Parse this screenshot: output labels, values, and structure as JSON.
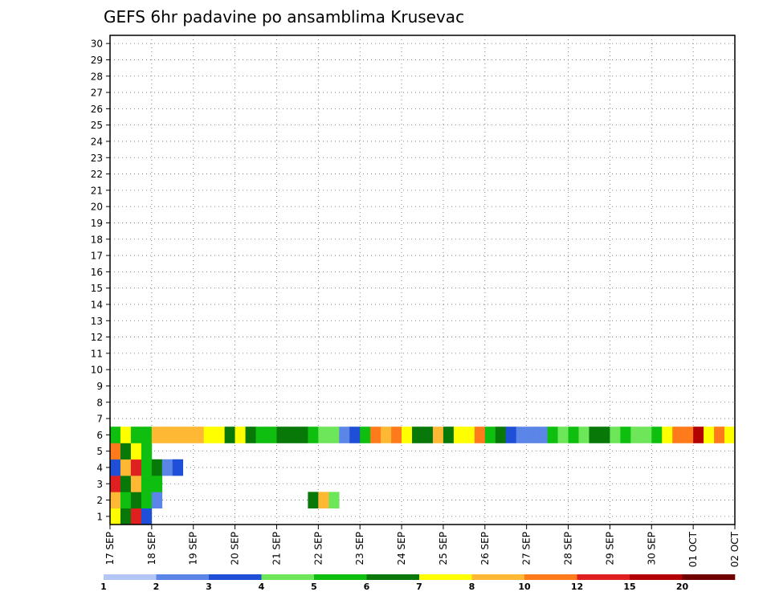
{
  "chart_data": {
    "type": "heatmap",
    "title": "GEFS 6hr padavine po ansamblima Krusevac",
    "y_categories": [
      "1",
      "2",
      "3",
      "4",
      "5",
      "6",
      "7",
      "8",
      "9",
      "10",
      "11",
      "12",
      "13",
      "14",
      "15",
      "16",
      "17",
      "18",
      "19",
      "20",
      "21",
      "22",
      "23",
      "24",
      "25",
      "26",
      "27",
      "28",
      "29",
      "30"
    ],
    "x_tick_labels": [
      "17 SEP",
      "18 SEP",
      "19 SEP",
      "20 SEP",
      "21 SEP",
      "22 SEP",
      "23 SEP",
      "24 SEP",
      "25 SEP",
      "26 SEP",
      "27 SEP",
      "28 SEP",
      "29 SEP",
      "30 SEP",
      "01 OCT",
      "02 OCT"
    ],
    "x_step_count": 60,
    "legend_labels": [
      "1",
      "2",
      "3",
      "4",
      "5",
      "6",
      "7",
      "8",
      "10",
      "12",
      "15",
      "20"
    ],
    "legend_colors": [
      "#b3c6f5",
      "#5b85e6",
      "#1f4fd6",
      "#6ee65a",
      "#0fbf0f",
      "#087808",
      "#ffff00",
      "#ffb833",
      "#ff7a1a",
      "#e02020",
      "#b30000",
      "#700000"
    ],
    "cells": [
      [
        0,
        0,
        6
      ],
      [
        1,
        0,
        5
      ],
      [
        2,
        0,
        9
      ],
      [
        3,
        0,
        2
      ],
      [
        0,
        1,
        7
      ],
      [
        1,
        1,
        4
      ],
      [
        2,
        1,
        5
      ],
      [
        3,
        1,
        4
      ],
      [
        4,
        1,
        1
      ],
      [
        19,
        1,
        5
      ],
      [
        20,
        1,
        7
      ],
      [
        21,
        1,
        3
      ],
      [
        0,
        2,
        9
      ],
      [
        1,
        2,
        5
      ],
      [
        2,
        2,
        7
      ],
      [
        3,
        2,
        4
      ],
      [
        4,
        2,
        4
      ],
      [
        0,
        3,
        2
      ],
      [
        1,
        3,
        7
      ],
      [
        2,
        3,
        9
      ],
      [
        3,
        3,
        4
      ],
      [
        4,
        3,
        5
      ],
      [
        5,
        3,
        1
      ],
      [
        6,
        3,
        2
      ],
      [
        0,
        4,
        8
      ],
      [
        1,
        4,
        5
      ],
      [
        2,
        4,
        6
      ],
      [
        3,
        4,
        4
      ],
      [
        0,
        5,
        4
      ],
      [
        1,
        5,
        6
      ],
      [
        2,
        5,
        4
      ],
      [
        3,
        5,
        4
      ],
      [
        4,
        5,
        7
      ],
      [
        5,
        5,
        7
      ],
      [
        6,
        5,
        7
      ],
      [
        7,
        5,
        7
      ],
      [
        8,
        5,
        7
      ],
      [
        9,
        5,
        6
      ],
      [
        10,
        5,
        6
      ],
      [
        11,
        5,
        5
      ],
      [
        12,
        5,
        6
      ],
      [
        13,
        5,
        5
      ],
      [
        14,
        5,
        4
      ],
      [
        15,
        5,
        4
      ],
      [
        16,
        5,
        5
      ],
      [
        17,
        5,
        5
      ],
      [
        18,
        5,
        5
      ],
      [
        19,
        5,
        4
      ],
      [
        20,
        5,
        3
      ],
      [
        21,
        5,
        3
      ],
      [
        22,
        5,
        1
      ],
      [
        23,
        5,
        2
      ],
      [
        24,
        5,
        4
      ],
      [
        25,
        5,
        8
      ],
      [
        26,
        5,
        7
      ],
      [
        27,
        5,
        8
      ],
      [
        28,
        5,
        6
      ],
      [
        29,
        5,
        5
      ],
      [
        30,
        5,
        5
      ],
      [
        31,
        5,
        7
      ],
      [
        32,
        5,
        5
      ],
      [
        33,
        5,
        6
      ],
      [
        34,
        5,
        6
      ],
      [
        35,
        5,
        8
      ],
      [
        36,
        5,
        4
      ],
      [
        37,
        5,
        5
      ],
      [
        38,
        5,
        2
      ],
      [
        39,
        5,
        1
      ],
      [
        40,
        5,
        1
      ],
      [
        41,
        5,
        1
      ],
      [
        42,
        5,
        4
      ],
      [
        43,
        5,
        3
      ],
      [
        44,
        5,
        4
      ],
      [
        45,
        5,
        3
      ],
      [
        46,
        5,
        5
      ],
      [
        47,
        5,
        5
      ],
      [
        48,
        5,
        3
      ],
      [
        49,
        5,
        4
      ],
      [
        50,
        5,
        3
      ],
      [
        51,
        5,
        3
      ],
      [
        52,
        5,
        4
      ],
      [
        53,
        5,
        6
      ],
      [
        54,
        5,
        8
      ],
      [
        55,
        5,
        8
      ],
      [
        56,
        5,
        10
      ],
      [
        57,
        5,
        6
      ],
      [
        58,
        5,
        8
      ],
      [
        59,
        5,
        6
      ]
    ]
  }
}
